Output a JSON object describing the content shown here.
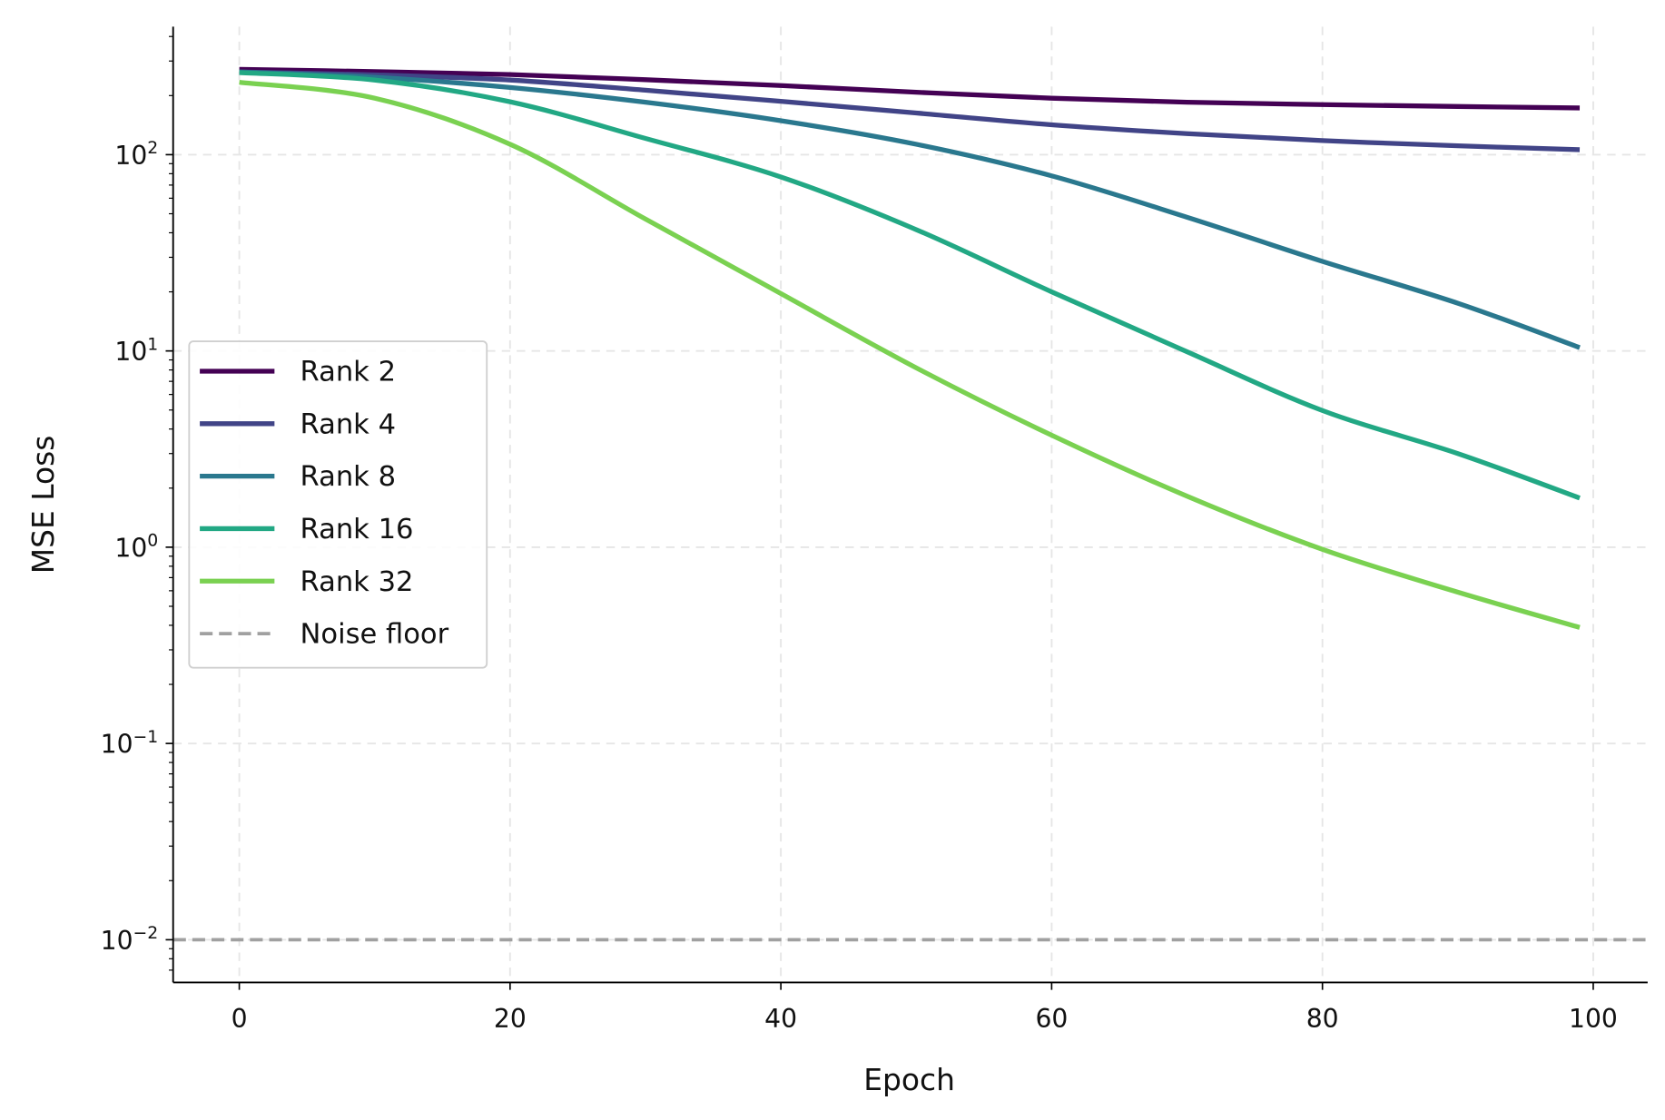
{
  "chart_data": {
    "type": "line",
    "title": "",
    "xlabel": "Epoch",
    "ylabel": "MSE Loss",
    "xlim": [
      -5,
      104
    ],
    "ylim": [
      0.0061,
      449
    ],
    "yscale": "log",
    "grid": true,
    "legend_position": "center-left",
    "x_ticks": [
      0,
      20,
      40,
      60,
      80,
      100
    ],
    "x_tick_labels": [
      "0",
      "20",
      "40",
      "60",
      "80",
      "100"
    ],
    "y_ticks": [
      0.01,
      0.1,
      1,
      10,
      100
    ],
    "y_tick_labels": [
      {
        "base": "10",
        "exp": "−2"
      },
      {
        "base": "10",
        "exp": "−1"
      },
      {
        "base": "10",
        "exp": "0"
      },
      {
        "base": "10",
        "exp": "1"
      },
      {
        "base": "10",
        "exp": "2"
      }
    ],
    "x": [
      0,
      10,
      20,
      30,
      40,
      50,
      60,
      70,
      80,
      90,
      99
    ],
    "series": [
      {
        "name": "Rank 2",
        "color": "#440154",
        "values": [
          272,
          265,
          256,
          241,
          225,
          208,
          194,
          185,
          180,
          176,
          173
        ]
      },
      {
        "name": "Rank 4",
        "color": "#414487",
        "values": [
          264,
          255,
          240,
          213,
          187,
          163,
          142,
          128,
          118,
          111,
          106
        ]
      },
      {
        "name": "Rank 8",
        "color": "#2a788e",
        "values": [
          264,
          248,
          220,
          185,
          149,
          113,
          78,
          48,
          28.6,
          17.5,
          10.4
        ]
      },
      {
        "name": "Rank 16",
        "color": "#22a884",
        "values": [
          262,
          240,
          186,
          121,
          77,
          41.5,
          20,
          9.9,
          4.97,
          3.0,
          1.78
        ]
      },
      {
        "name": "Rank 32",
        "color": "#7ad151",
        "values": [
          234,
          194,
          113,
          47,
          19.6,
          8.2,
          3.72,
          1.82,
          0.975,
          0.59,
          0.39
        ]
      }
    ],
    "reference_lines": [
      {
        "name": "Noise floor",
        "y": 0.01,
        "color": "#a0a0a0",
        "style": "dashed"
      }
    ]
  }
}
